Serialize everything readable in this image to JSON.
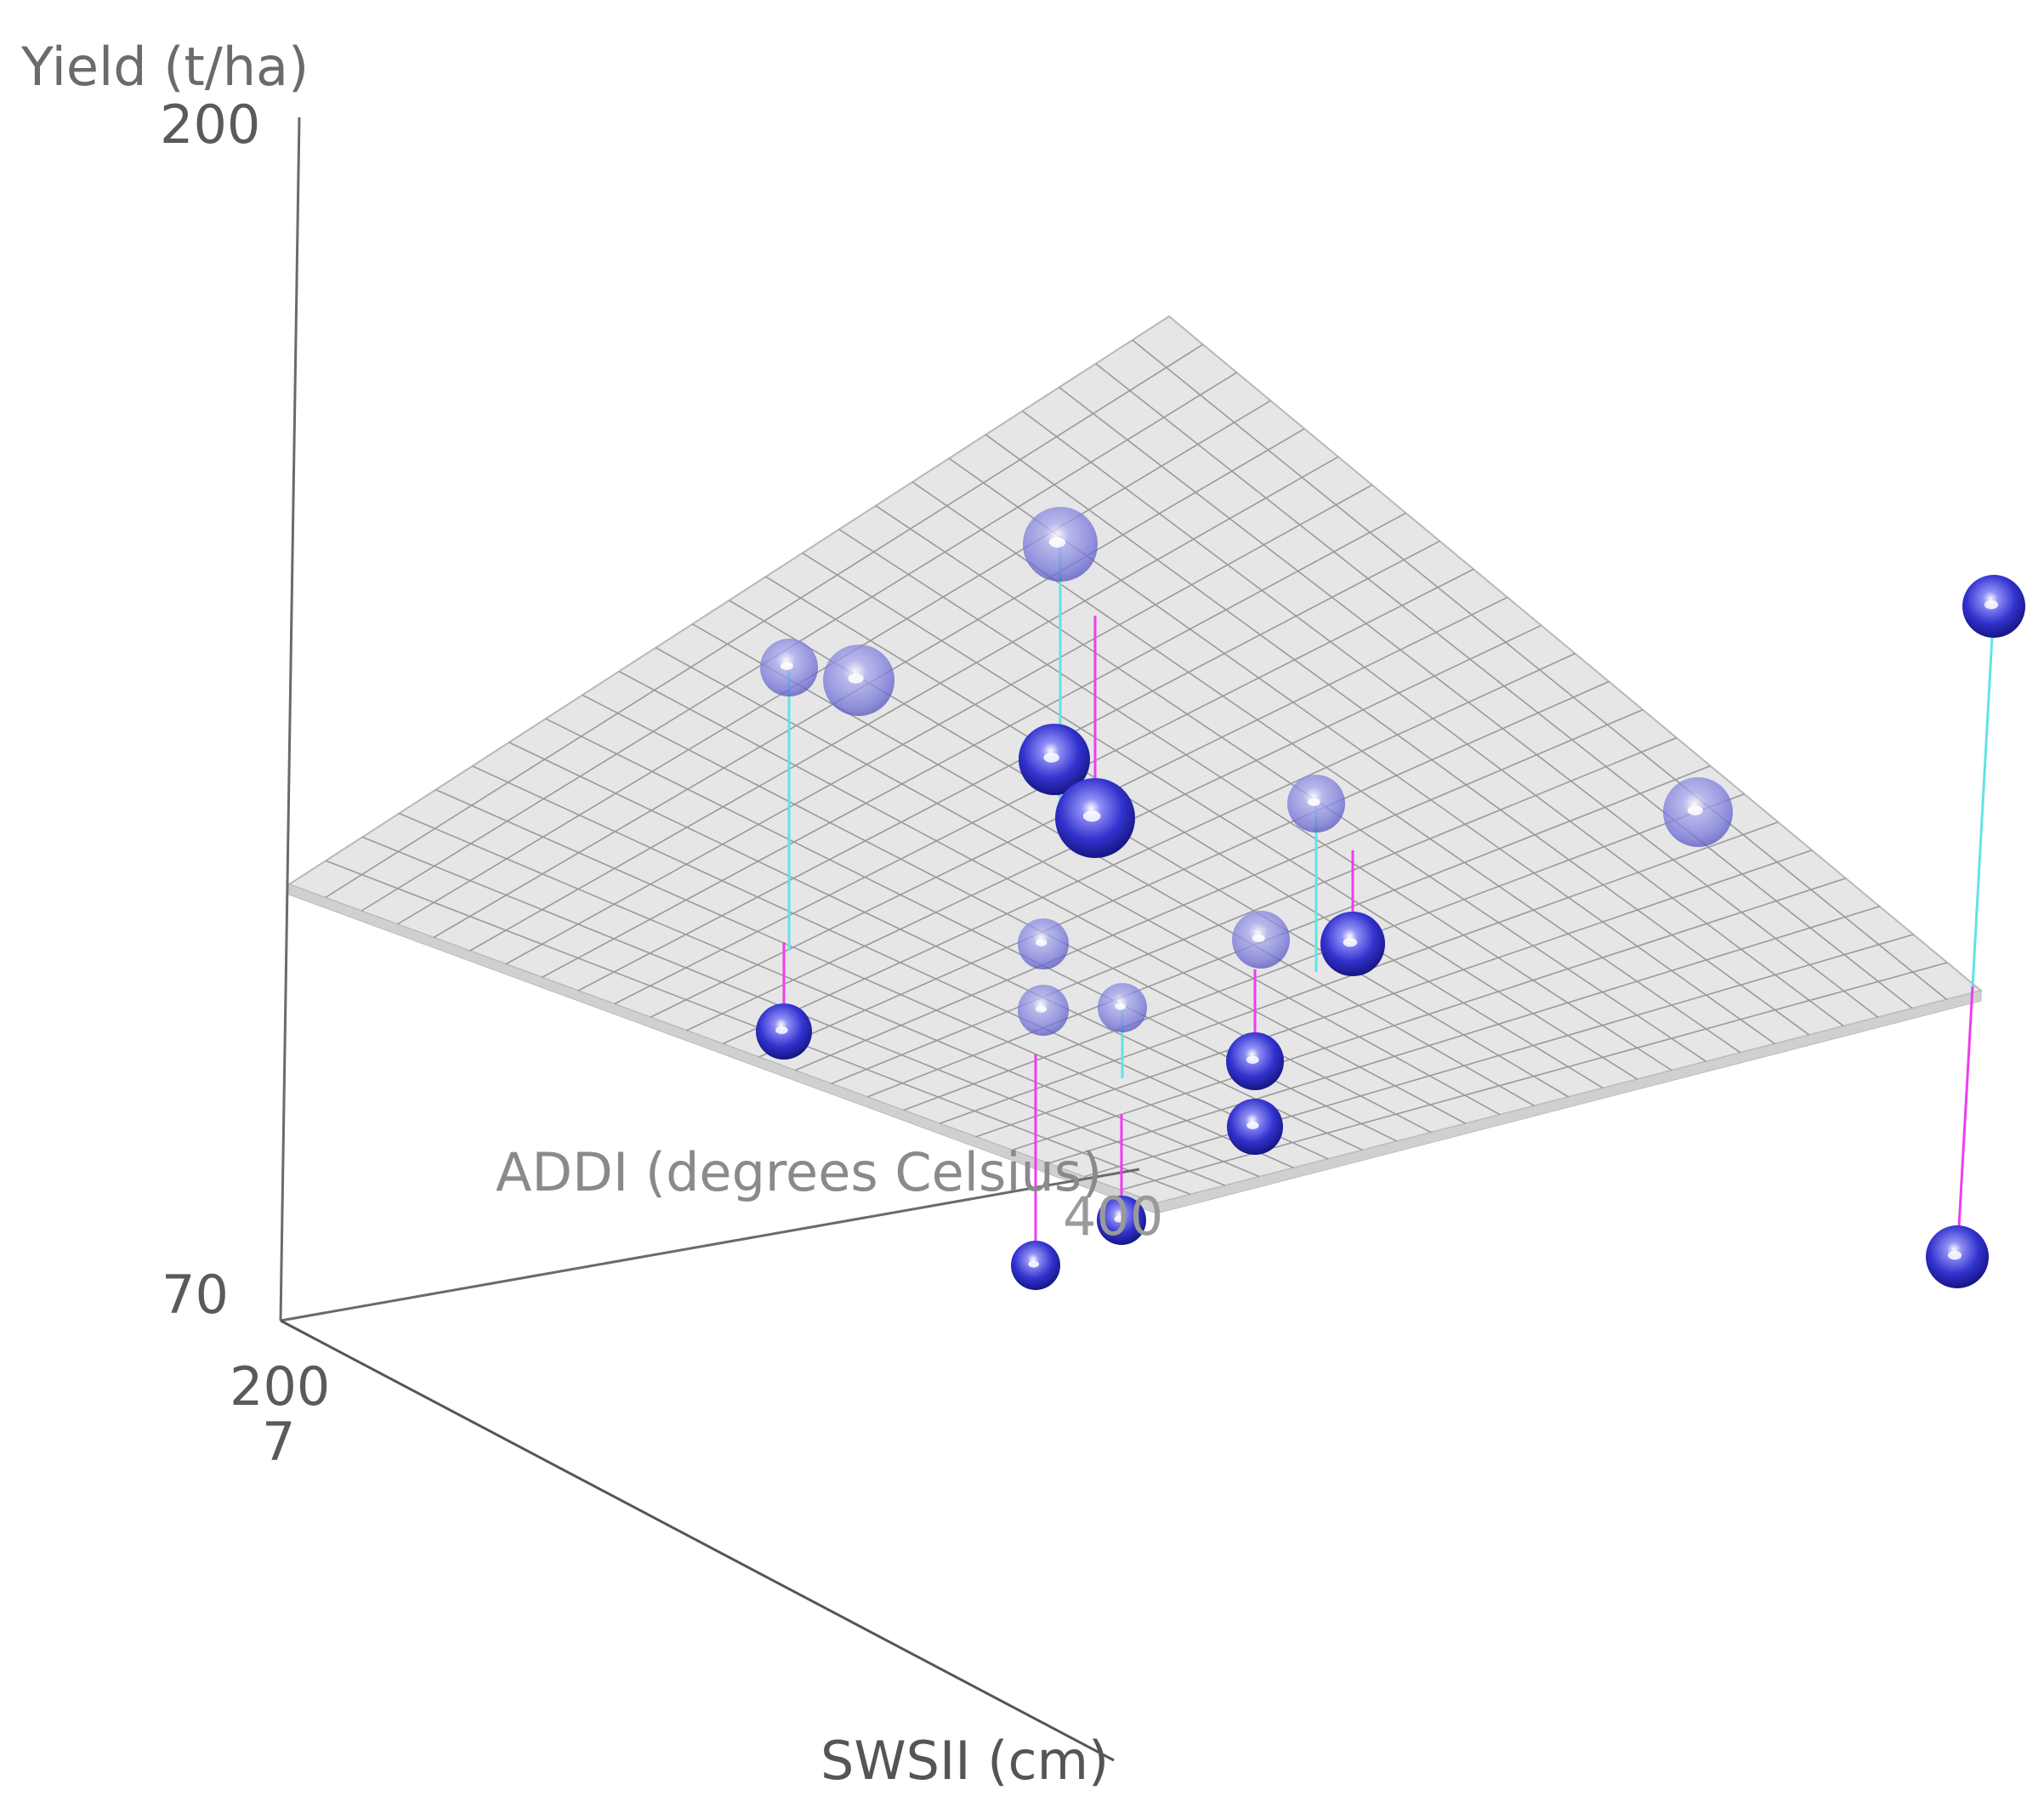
{
  "chart_data": {
    "type": "scatter3d",
    "axes": {
      "y": {
        "label": "Yield (t/ha)",
        "ticks": [
          "200",
          "70"
        ]
      },
      "x": {
        "label": "ADDI (degrees Celsius)",
        "ticks": [
          "400"
        ]
      },
      "z": {
        "label": "SWSII (cm)",
        "ticks": [
          "200",
          "7"
        ]
      }
    },
    "surface": {
      "kind": "regression plane",
      "grid_color": "#9a9a9a",
      "fill_color": "#e6e6e6"
    },
    "point_color": "#3b3bd6",
    "residual_colors": {
      "above_plane": "#62e3e3",
      "below_plane": "#f03cf0"
    }
  }
}
